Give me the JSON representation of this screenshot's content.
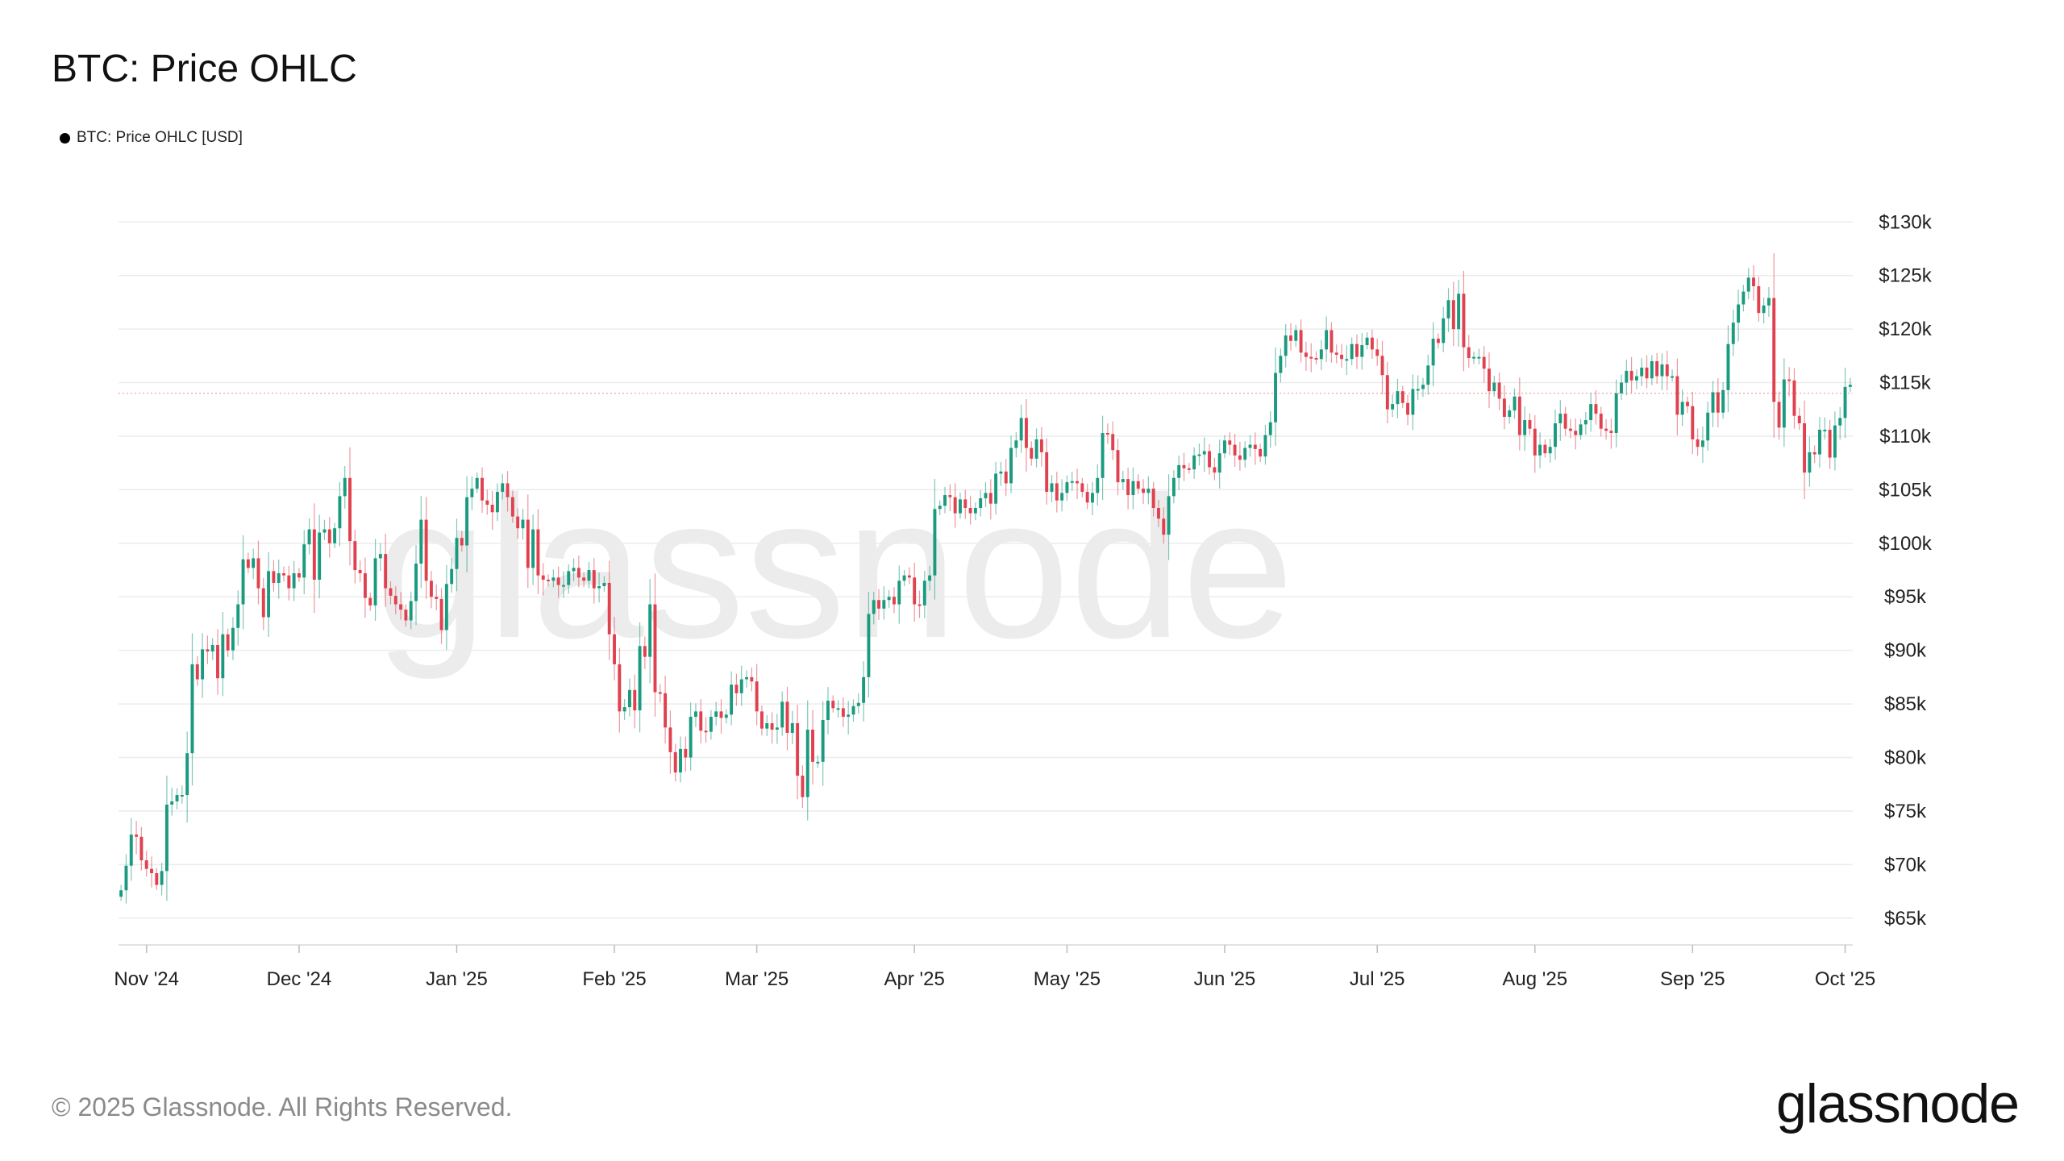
{
  "header": {
    "title": "BTC: Price OHLC"
  },
  "legend": {
    "label": "BTC: Price OHLC [USD]",
    "color": "#000000"
  },
  "footer": {
    "copyright": "© 2025 Glassnode. All Rights Reserved.",
    "logo": "glassnode"
  },
  "watermark": "glassnode",
  "colors": {
    "up": "#1a9a7e",
    "down": "#e0414f",
    "grid": "#ececec",
    "last_price_line": "#f3b3b8"
  },
  "chart_data": {
    "type": "candlestick",
    "title": "BTC: Price OHLC",
    "series_name": "BTC: Price OHLC [USD]",
    "ylim": [
      62500,
      131000
    ],
    "y_ticks": [
      65000,
      70000,
      75000,
      80000,
      85000,
      90000,
      95000,
      100000,
      105000,
      110000,
      115000,
      120000,
      125000,
      130000
    ],
    "y_tick_labels": [
      "$65k",
      "$70k",
      "$75k",
      "$80k",
      "$85k",
      "$90k",
      "$95k",
      "$100k",
      "$105k",
      "$110k",
      "$115k",
      "$120k",
      "$125k",
      "$130k"
    ],
    "x_tick_labels": [
      "Nov '24",
      "Dec '24",
      "Jan '25",
      "Feb '25",
      "Mar '25",
      "Apr '25",
      "May '25",
      "Jun '25",
      "Jul '25",
      "Aug '25",
      "Sep '25",
      "Oct '25"
    ],
    "x_tick_dates": [
      "2024-11-01",
      "2024-12-01",
      "2025-01-01",
      "2025-02-01",
      "2025-03-01",
      "2025-04-01",
      "2025-05-01",
      "2025-06-01",
      "2025-07-01",
      "2025-08-01",
      "2025-09-01",
      "2025-10-01"
    ],
    "start_date": "2024-10-27",
    "last_price": 114000,
    "grid": true,
    "closes": [
      67600,
      69900,
      72800,
      72600,
      70400,
      69600,
      69200,
      68100,
      69400,
      75600,
      75900,
      76500,
      76500,
      80400,
      88700,
      87300,
      90100,
      89900,
      90500,
      87400,
      91500,
      90000,
      92100,
      94300,
      98500,
      97700,
      98600,
      95800,
      93100,
      97400,
      96300,
      97200,
      97000,
      95800,
      97200,
      96800,
      99900,
      101300,
      96600,
      101000,
      101300,
      100000,
      101400,
      104400,
      106100,
      100200,
      97500,
      97200,
      94900,
      94200,
      98600,
      99000,
      95800,
      95100,
      94300,
      93800,
      92800,
      94600,
      98100,
      102200,
      96500,
      95000,
      94800,
      91900,
      96200,
      97600,
      100500,
      99800,
      104300,
      105100,
      106100,
      104000,
      103600,
      102900,
      104800,
      105600,
      104300,
      102500,
      101400,
      102200,
      97700,
      101300,
      97000,
      96600,
      96500,
      96800,
      96100,
      96100,
      97400,
      97700,
      96800,
      96500,
      97500,
      95800,
      96000,
      96300,
      91500,
      88700,
      84300,
      84700,
      86300,
      84400,
      90400,
      89400,
      94300,
      86100,
      86000,
      82800,
      80500,
      78600,
      80800,
      80000,
      83800,
      84300,
      82500,
      82400,
      83800,
      84300,
      83700,
      84000,
      86800,
      86000,
      87300,
      87500,
      87100,
      84300,
      82700,
      83200,
      82600,
      82800,
      85200,
      82300,
      83200,
      78300,
      76300,
      82600,
      79600,
      79600,
      83500,
      85300,
      84600,
      84600,
      83800,
      84000,
      84800,
      85100,
      87500,
      93400,
      94700,
      93900,
      94700,
      95000,
      94300,
      96500,
      97000,
      96800,
      94300,
      94200,
      96500,
      97000,
      103200,
      103500,
      104500,
      104300,
      102800,
      104100,
      103300,
      102800,
      103300,
      104200,
      104700,
      103700,
      106500,
      106700,
      105600,
      108900,
      109600,
      111700,
      108900,
      107900,
      109700,
      108500,
      104800,
      105600,
      104000,
      104700,
      105700,
      105800,
      105600,
      104800,
      103800,
      104700,
      106100,
      110300,
      110200,
      108700,
      105700,
      106000,
      104500,
      105800,
      105100,
      104700,
      105100,
      103300,
      102300,
      100800,
      104400,
      106100,
      107300,
      107000,
      106900,
      108200,
      108300,
      108600,
      107100,
      106600,
      108400,
      109600,
      109200,
      108200,
      107800,
      108900,
      109200,
      108800,
      108100,
      110100,
      111300,
      115900,
      117500,
      119400,
      118900,
      119900,
      117800,
      117400,
      117300,
      117200,
      118100,
      119900,
      117800,
      117600,
      117200,
      117200,
      118600,
      117400,
      118500,
      119200,
      118100,
      117500,
      115700,
      112500,
      113000,
      114200,
      113100,
      112000,
      114400,
      114400,
      114800,
      116600,
      119100,
      118700,
      121000,
      122700,
      120000,
      123300,
      118300,
      117300,
      117400,
      117400,
      116300,
      114200,
      115000,
      113500,
      111800,
      112400,
      113700,
      110100,
      111500,
      110700,
      108200,
      109200,
      108400,
      109000,
      111200,
      112100,
      110700,
      110500,
      110100,
      111100,
      111500,
      113000,
      112100,
      110700,
      110500,
      110300,
      114000,
      115000,
      116100,
      115200,
      115600,
      116400,
      115400,
      117000,
      115600,
      116700,
      115600,
      115600,
      112000,
      113200,
      112800,
      109700,
      109000,
      109600,
      112200,
      114100,
      112200,
      114300,
      118600,
      120600,
      122300,
      123500,
      124800,
      124000,
      121500,
      122200,
      122900,
      113200,
      110800,
      115300,
      115200,
      111900,
      111200,
      106600,
      108500,
      108300,
      110600,
      110600,
      108000,
      111000,
      111700,
      114600,
      114800
    ]
  }
}
